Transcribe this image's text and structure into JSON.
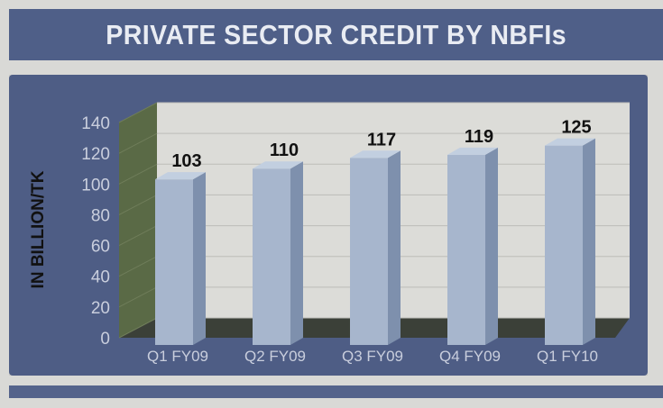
{
  "chart_data": {
    "type": "bar",
    "title": "PRIVATE SECTOR CREDIT BY NBFIs",
    "ylabel": "IN BILLION/TK",
    "xlabel": "",
    "categories": [
      "Q1 FY09",
      "Q2 FY09",
      "Q3 FY09",
      "Q4 FY09",
      "Q1 FY10"
    ],
    "values": [
      103,
      110,
      117,
      119,
      125
    ],
    "data_labels": [
      "103",
      "110",
      "117",
      "119",
      "125"
    ],
    "yticks": [
      "0",
      "20",
      "40",
      "60",
      "80",
      "100",
      "120",
      "140"
    ],
    "ylim": [
      0,
      140
    ],
    "grid": true,
    "three_d": true,
    "colors": {
      "bar_front": "#a7b6cd",
      "bar_side": "#7e90ad",
      "bar_top": "#c2cfe0",
      "frame": "#4e5d85",
      "title_bar": "#4f5f88",
      "title_text": "#e9ecf3",
      "plot_wall": "#dcdcd8",
      "side_wall": "#5a6a46",
      "floor": "#3b4038"
    }
  }
}
